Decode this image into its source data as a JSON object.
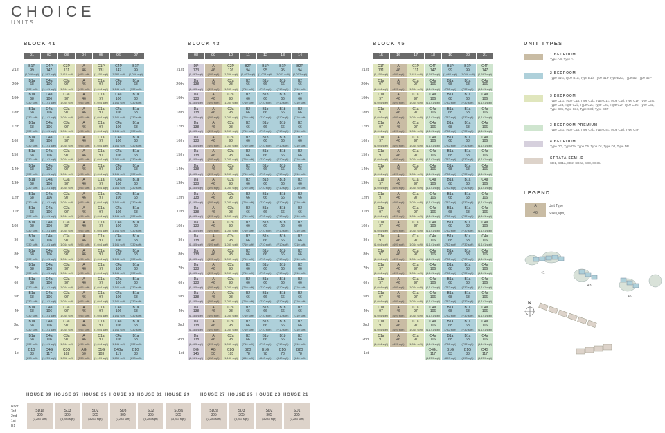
{
  "header": {
    "title": "CHOICE",
    "subtitle": "UNITS"
  },
  "blocks": [
    {
      "name": "BLOCK 41"
    },
    {
      "name": "BLOCK 43"
    },
    {
      "name": "BLOCK 45"
    }
  ],
  "floors": [
    "21st",
    "20th",
    "19th",
    "18th",
    "17th",
    "16th",
    "15th",
    "14th",
    "13th",
    "12th",
    "11th",
    "10th",
    "9th",
    "8th",
    "7th",
    "6th",
    "5th",
    "4th",
    "3rd",
    "2nd",
    "1st"
  ],
  "stacks": [
    {
      "no": "01",
      "block": 0,
      "typical": {
        "c": "c-2",
        "t": "B1a",
        "s": "68",
        "a": "(732 sqft)"
      },
      "top": {
        "c": "c-2",
        "t": "B1P",
        "s": "99",
        "a": "(1,066 sqft)"
      },
      "first": {
        "c": "c-2",
        "t": "B1G",
        "s": "83",
        "a": "(893 sqft)"
      }
    },
    {
      "no": "02",
      "block": 0,
      "typical": {
        "c": "c-2",
        "t": "C4a",
        "s": "106",
        "a": "(1,141 sqft)"
      },
      "top": {
        "c": "c-2",
        "t": "C4P",
        "s": "147",
        "a": "(1,582 sqft)"
      },
      "first": {
        "c": "c-2",
        "t": "C4G",
        "s": "117",
        "a": "(1,259 sqft)"
      }
    },
    {
      "no": "03",
      "block": 0,
      "typical": {
        "c": "c-3",
        "t": "C3a",
        "s": "97",
        "a": "(1,044 sqft)"
      },
      "top": {
        "c": "c-3",
        "t": "C3P",
        "s": "131",
        "a": "(1,410 sqft)"
      },
      "first": {
        "c": "c-3",
        "t": "C3G",
        "s": "102",
        "a": "(1,098 sqft)"
      }
    },
    {
      "no": "04",
      "block": 0,
      "typical": {
        "c": "c-1",
        "t": "A",
        "s": "46",
        "a": "(495 sqft)"
      },
      "top": {
        "c": "c-1",
        "t": "A",
        "s": "46",
        "a": "(495 sqft)"
      },
      "first": {
        "c": "c-1",
        "t": "AG",
        "s": "50",
        "a": "(538 sqft)"
      }
    },
    {
      "no": "05",
      "block": 0,
      "typical": {
        "c": "c-3",
        "t": "C1a",
        "s": "97",
        "a": "(1,044 sqft)"
      },
      "top": {
        "c": "c-3",
        "t": "C1P",
        "s": "131",
        "a": "(1,410 sqft)"
      },
      "first": {
        "c": "c-3",
        "t": "C1G",
        "s": "103",
        "a": "(1,109 sqft)"
      }
    },
    {
      "no": "06",
      "block": 0,
      "typical": {
        "c": "c-2",
        "t": "C4a",
        "s": "106",
        "a": "(1,141 sqft)"
      },
      "top": {
        "c": "c-2",
        "t": "C4P",
        "s": "147",
        "a": "(1,582 sqft)"
      },
      "first": {
        "c": "c-2",
        "t": "C4Ga",
        "s": "117",
        "a": "(1,259 sqft)"
      }
    },
    {
      "no": "07",
      "block": 0,
      "typical": {
        "c": "c-2",
        "t": "B1a",
        "s": "68",
        "a": "(732 sqft)"
      },
      "top": {
        "c": "c-2",
        "t": "B1P",
        "s": "99",
        "a": "(1,066 sqft)"
      },
      "first": {
        "c": "c-2",
        "t": "B1G",
        "s": "83",
        "a": "(893 sqft)"
      }
    },
    {
      "no": "08",
      "block": 1,
      "typical": {
        "c": "c-4",
        "t": "Da",
        "s": "138",
        "a": "(1,485 sqft)"
      },
      "top": {
        "c": "c-4",
        "t": "DP",
        "s": "173",
        "a": "(1,862 sqft)"
      },
      "first": {
        "c": "c-4",
        "t": "DG",
        "s": "145",
        "a": "(1,561 sqft)"
      }
    },
    {
      "no": "09",
      "block": 1,
      "typical": {
        "c": "c-1",
        "t": "A",
        "s": "46",
        "a": "(495 sqft)"
      },
      "top": {
        "c": "c-1",
        "t": "A",
        "s": "46",
        "a": "(495 sqft)"
      },
      "first": {
        "c": "c-1",
        "t": "AG",
        "s": "50",
        "a": "(538 sqft)"
      }
    },
    {
      "no": "10",
      "block": 1,
      "typical": {
        "c": "c-3",
        "t": "C2a",
        "s": "98",
        "a": "(1,055 sqft)"
      },
      "top": {
        "c": "c-3",
        "t": "C2P",
        "s": "126",
        "a": "(1,356 sqft)"
      },
      "first": {
        "c": "c-3",
        "t": "C2G",
        "s": "105",
        "a": "(1,130 sqft)"
      }
    },
    {
      "no": "11",
      "block": 1,
      "typical": {
        "c": "c-2",
        "t": "B2",
        "s": "66",
        "a": "(710 sqft)"
      },
      "top": {
        "c": "c-2",
        "t": "B2P",
        "s": "94",
        "a": "(1,012 sqft)"
      },
      "first": {
        "c": "c-2",
        "t": "B2G",
        "s": "78",
        "a": "(840 sqft)"
      }
    },
    {
      "no": "12",
      "block": 1,
      "typical": {
        "c": "c-2",
        "t": "B1b",
        "s": "66",
        "a": "(710 sqft)"
      },
      "top": {
        "c": "c-2",
        "t": "B1P",
        "s": "95",
        "a": "(1,023 sqft)"
      },
      "first": {
        "c": "c-2",
        "t": "B1G",
        "s": "78",
        "a": "(840 sqft)"
      }
    },
    {
      "no": "13",
      "block": 1,
      "typical": {
        "c": "c-2",
        "t": "B1b",
        "s": "66",
        "a": "(710 sqft)"
      },
      "top": {
        "c": "c-2",
        "t": "B1P",
        "s": "95",
        "a": "(1,023 sqft)"
      },
      "first": {
        "c": "c-2",
        "t": "B1G",
        "s": "78",
        "a": "(840 sqft)"
      }
    },
    {
      "no": "14",
      "block": 1,
      "typical": {
        "c": "c-2",
        "t": "B2",
        "s": "66",
        "a": "(710 sqft)"
      },
      "top": {
        "c": "c-2",
        "t": "B2P",
        "s": "94",
        "a": "(1,012 sqft)"
      },
      "first": {
        "c": "c-2",
        "t": "B2G",
        "s": "78",
        "a": "(840 sqft)"
      }
    },
    {
      "no": "15",
      "block": 2,
      "typical": {
        "c": "c-3",
        "t": "C1a",
        "s": "97",
        "a": "(1,044 sqft)"
      },
      "top": {
        "c": "c-3",
        "t": "C1P",
        "s": "131",
        "a": "(1,410 sqft)"
      },
      "first": null
    },
    {
      "no": "16",
      "block": 2,
      "typical": {
        "c": "c-1",
        "t": "A",
        "s": "46",
        "a": "(495 sqft)"
      },
      "top": {
        "c": "c-1",
        "t": "A",
        "s": "46",
        "a": "(495 sqft)"
      },
      "first": null
    },
    {
      "no": "17",
      "block": 2,
      "typical": {
        "c": "c-3",
        "t": "C1a",
        "s": "97",
        "a": "(1,044 sqft)"
      },
      "top": {
        "c": "c-3",
        "t": "C1P",
        "s": "131",
        "a": "(1,410 sqft)"
      },
      "first": null
    },
    {
      "no": "18",
      "block": 2,
      "typical": {
        "c": "c-3p",
        "t": "C4a",
        "s": "106",
        "a": "(1,141 sqft)"
      },
      "top": {
        "c": "c-3p",
        "t": "C4P",
        "s": "147",
        "a": "(1,582 sqft)"
      },
      "first": {
        "c": "c-3p",
        "t": "C4GL",
        "s": "117",
        "a": "(1,259 sqft)"
      }
    },
    {
      "no": "19",
      "block": 2,
      "typical": {
        "c": "c-2",
        "t": "B1a",
        "s": "68",
        "a": "(732 sqft)"
      },
      "top": {
        "c": "c-2",
        "t": "B1P",
        "s": "99",
        "a": "(1,066 sqft)"
      },
      "first": {
        "c": "c-2",
        "t": "B1G",
        "s": "83",
        "a": "(893 sqft)"
      }
    },
    {
      "no": "20",
      "block": 2,
      "typical": {
        "c": "c-2",
        "t": "B1a",
        "s": "68",
        "a": "(732 sqft)"
      },
      "top": {
        "c": "c-2",
        "t": "B1P",
        "s": "99",
        "a": "(1,066 sqft)"
      },
      "first": {
        "c": "c-2",
        "t": "B1G",
        "s": "83",
        "a": "(893 sqft)"
      }
    },
    {
      "no": "21",
      "block": 2,
      "typical": {
        "c": "c-3p",
        "t": "C4a",
        "s": "106",
        "a": "(1,141 sqft)"
      },
      "top": {
        "c": "c-3p",
        "t": "C4P",
        "s": "147",
        "a": "(1,582 sqft)"
      },
      "first": {
        "c": "c-3p",
        "t": "C4G",
        "s": "117",
        "a": "(1,259 sqft)"
      }
    }
  ],
  "unit_types_title": "UNIT TYPES",
  "unit_types": [
    {
      "name": "1 BEDROOM",
      "desc": "Type AG, Type A",
      "color": "#c9bca4"
    },
    {
      "name": "2 BEDROOM",
      "desc": "Type B1G, Type B1a, Type B1b, Type B1P Type B2G, Type B2, Type B2P",
      "color": "#aed0da"
    },
    {
      "name": "3 BEDROOM",
      "desc": "Type C1G, Type C1a, Type C1b, Type C1c, Type C1d, Type C1P Type C2G, Type C2a, Type C2b, Type C2c, Type C2d, Type C2P Type C3G, Type C3a, Type C3b, Type C3c, Type C3d, Type C3P",
      "color": "#e0e6bd"
    },
    {
      "name": "3 BEDROOM PREMIUM",
      "desc": "Type C4G, Type C4a, Type C4b, Type C4c, Type C4d, Type C4P",
      "color": "#cfe5cf"
    },
    {
      "name": "4 BEDROOM",
      "desc": "Type DG, Type Da, Type Db, Type Dc, Type Dd, Type DP",
      "color": "#d6d0dd"
    },
    {
      "name": "STRATA SEMI-D",
      "desc": "SD1, SD1a, SD2, SD2a, SD3, SD3a",
      "color": "#ddd3ca"
    }
  ],
  "legend": {
    "title": "LEGEND",
    "sample_top": "A",
    "sample_bottom": "46",
    "unit_type_label": "Unit Type",
    "size_label": "Size (sqm)"
  },
  "map": {
    "north": "N",
    "blocks": [
      "41",
      "43",
      "45"
    ]
  },
  "houses": [
    {
      "name": "HOUSE 39",
      "type": "SD1a",
      "sqm": "305",
      "sqft": "(3,283 sqft)"
    },
    {
      "name": "HOUSE 37",
      "type": "SD3",
      "sqm": "305",
      "sqft": "(3,283 sqft)"
    },
    {
      "name": "HOUSE 35",
      "type": "SD2",
      "sqm": "305",
      "sqft": "(3,283 sqft)"
    },
    {
      "name": "HOUSE 33",
      "type": "SD3",
      "sqm": "305",
      "sqft": "(3,283 sqft)"
    },
    {
      "name": "HOUSE 31",
      "type": "SD2",
      "sqm": "305",
      "sqft": "(3,283 sqft)"
    },
    {
      "name": "HOUSE 29",
      "type": "SD3a",
      "sqm": "305",
      "sqft": "(3,283 sqft)"
    },
    {
      "name": "HOUSE 27",
      "type": "SD2a",
      "sqm": "305",
      "sqft": "(3,283 sqft)"
    },
    {
      "name": "HOUSE 25",
      "type": "SD3",
      "sqm": "305",
      "sqft": "(3,283 sqft)"
    },
    {
      "name": "HOUSE 23",
      "type": "SD2",
      "sqm": "305",
      "sqft": "(3,283 sqft)"
    },
    {
      "name": "HOUSE 21",
      "type": "SD1",
      "sqm": "305",
      "sqft": "(3,283 sqft)"
    }
  ],
  "house_floors": [
    "Roof",
    "3rd",
    "2nd",
    "1st",
    "B1"
  ]
}
